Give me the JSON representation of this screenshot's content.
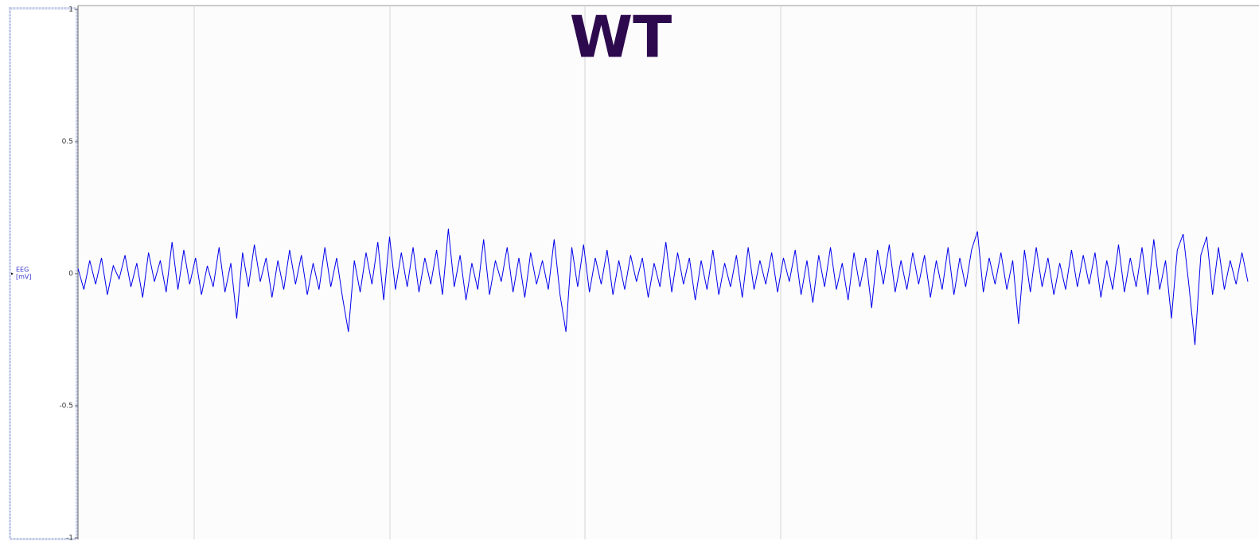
{
  "chart_data": {
    "type": "line",
    "title": "WT",
    "ylabel": [
      "EEG",
      "[mV]"
    ],
    "color": "#0000ee",
    "title_color": "#2d0a4e",
    "ylim": [
      -1,
      1
    ],
    "yticks": [
      -1,
      -0.5,
      0,
      0.5,
      1
    ],
    "grid": true,
    "values": [
      0.02,
      -0.06,
      0.05,
      -0.04,
      0.06,
      -0.08,
      0.03,
      -0.02,
      0.07,
      -0.05,
      0.04,
      -0.09,
      0.08,
      -0.03,
      0.05,
      -0.07,
      0.12,
      -0.06,
      0.09,
      -0.04,
      0.06,
      -0.08,
      0.03,
      -0.05,
      0.1,
      -0.07,
      0.04,
      -0.17,
      0.08,
      -0.05,
      0.11,
      -0.03,
      0.06,
      -0.09,
      0.05,
      -0.06,
      0.09,
      -0.04,
      0.07,
      -0.08,
      0.04,
      -0.06,
      0.1,
      -0.05,
      0.06,
      -0.09,
      -0.22,
      0.05,
      -0.07,
      0.08,
      -0.04,
      0.12,
      -0.1,
      0.14,
      -0.06,
      0.08,
      -0.05,
      0.1,
      -0.07,
      0.06,
      -0.04,
      0.09,
      -0.08,
      0.17,
      -0.05,
      0.07,
      -0.1,
      0.04,
      -0.06,
      0.13,
      -0.08,
      0.05,
      -0.03,
      0.1,
      -0.07,
      0.06,
      -0.09,
      0.08,
      -0.04,
      0.05,
      -0.06,
      0.13,
      -0.08,
      -0.22,
      0.1,
      -0.05,
      0.11,
      -0.07,
      0.06,
      -0.04,
      0.09,
      -0.08,
      0.05,
      -0.06,
      0.07,
      -0.03,
      0.06,
      -0.09,
      0.04,
      -0.05,
      0.12,
      -0.07,
      0.08,
      -0.04,
      0.06,
      -0.1,
      0.05,
      -0.06,
      0.09,
      -0.08,
      0.04,
      -0.05,
      0.07,
      -0.09,
      0.1,
      -0.06,
      0.05,
      -0.04,
      0.08,
      -0.07,
      0.06,
      -0.03,
      0.09,
      -0.08,
      0.05,
      -0.11,
      0.07,
      -0.05,
      0.1,
      -0.06,
      0.04,
      -0.1,
      0.08,
      -0.05,
      0.06,
      -0.13,
      0.09,
      -0.04,
      0.11,
      -0.07,
      0.05,
      -0.06,
      0.08,
      -0.04,
      0.07,
      -0.09,
      0.05,
      -0.06,
      0.1,
      -0.08,
      0.06,
      -0.05,
      0.09,
      0.16,
      -0.07,
      0.06,
      -0.04,
      0.08,
      -0.06,
      0.05,
      -0.19,
      0.09,
      -0.07,
      0.1,
      -0.05,
      0.06,
      -0.08,
      0.04,
      -0.06,
      0.09,
      -0.05,
      0.07,
      -0.04,
      0.08,
      -0.09,
      0.05,
      -0.06,
      0.11,
      -0.07,
      0.06,
      -0.05,
      0.1,
      -0.08,
      0.13,
      -0.06,
      0.05,
      -0.17,
      0.09,
      0.15,
      -0.05,
      -0.27,
      0.07,
      0.14,
      -0.08,
      0.1,
      -0.06,
      0.05,
      -0.04,
      0.08,
      -0.03
    ]
  }
}
